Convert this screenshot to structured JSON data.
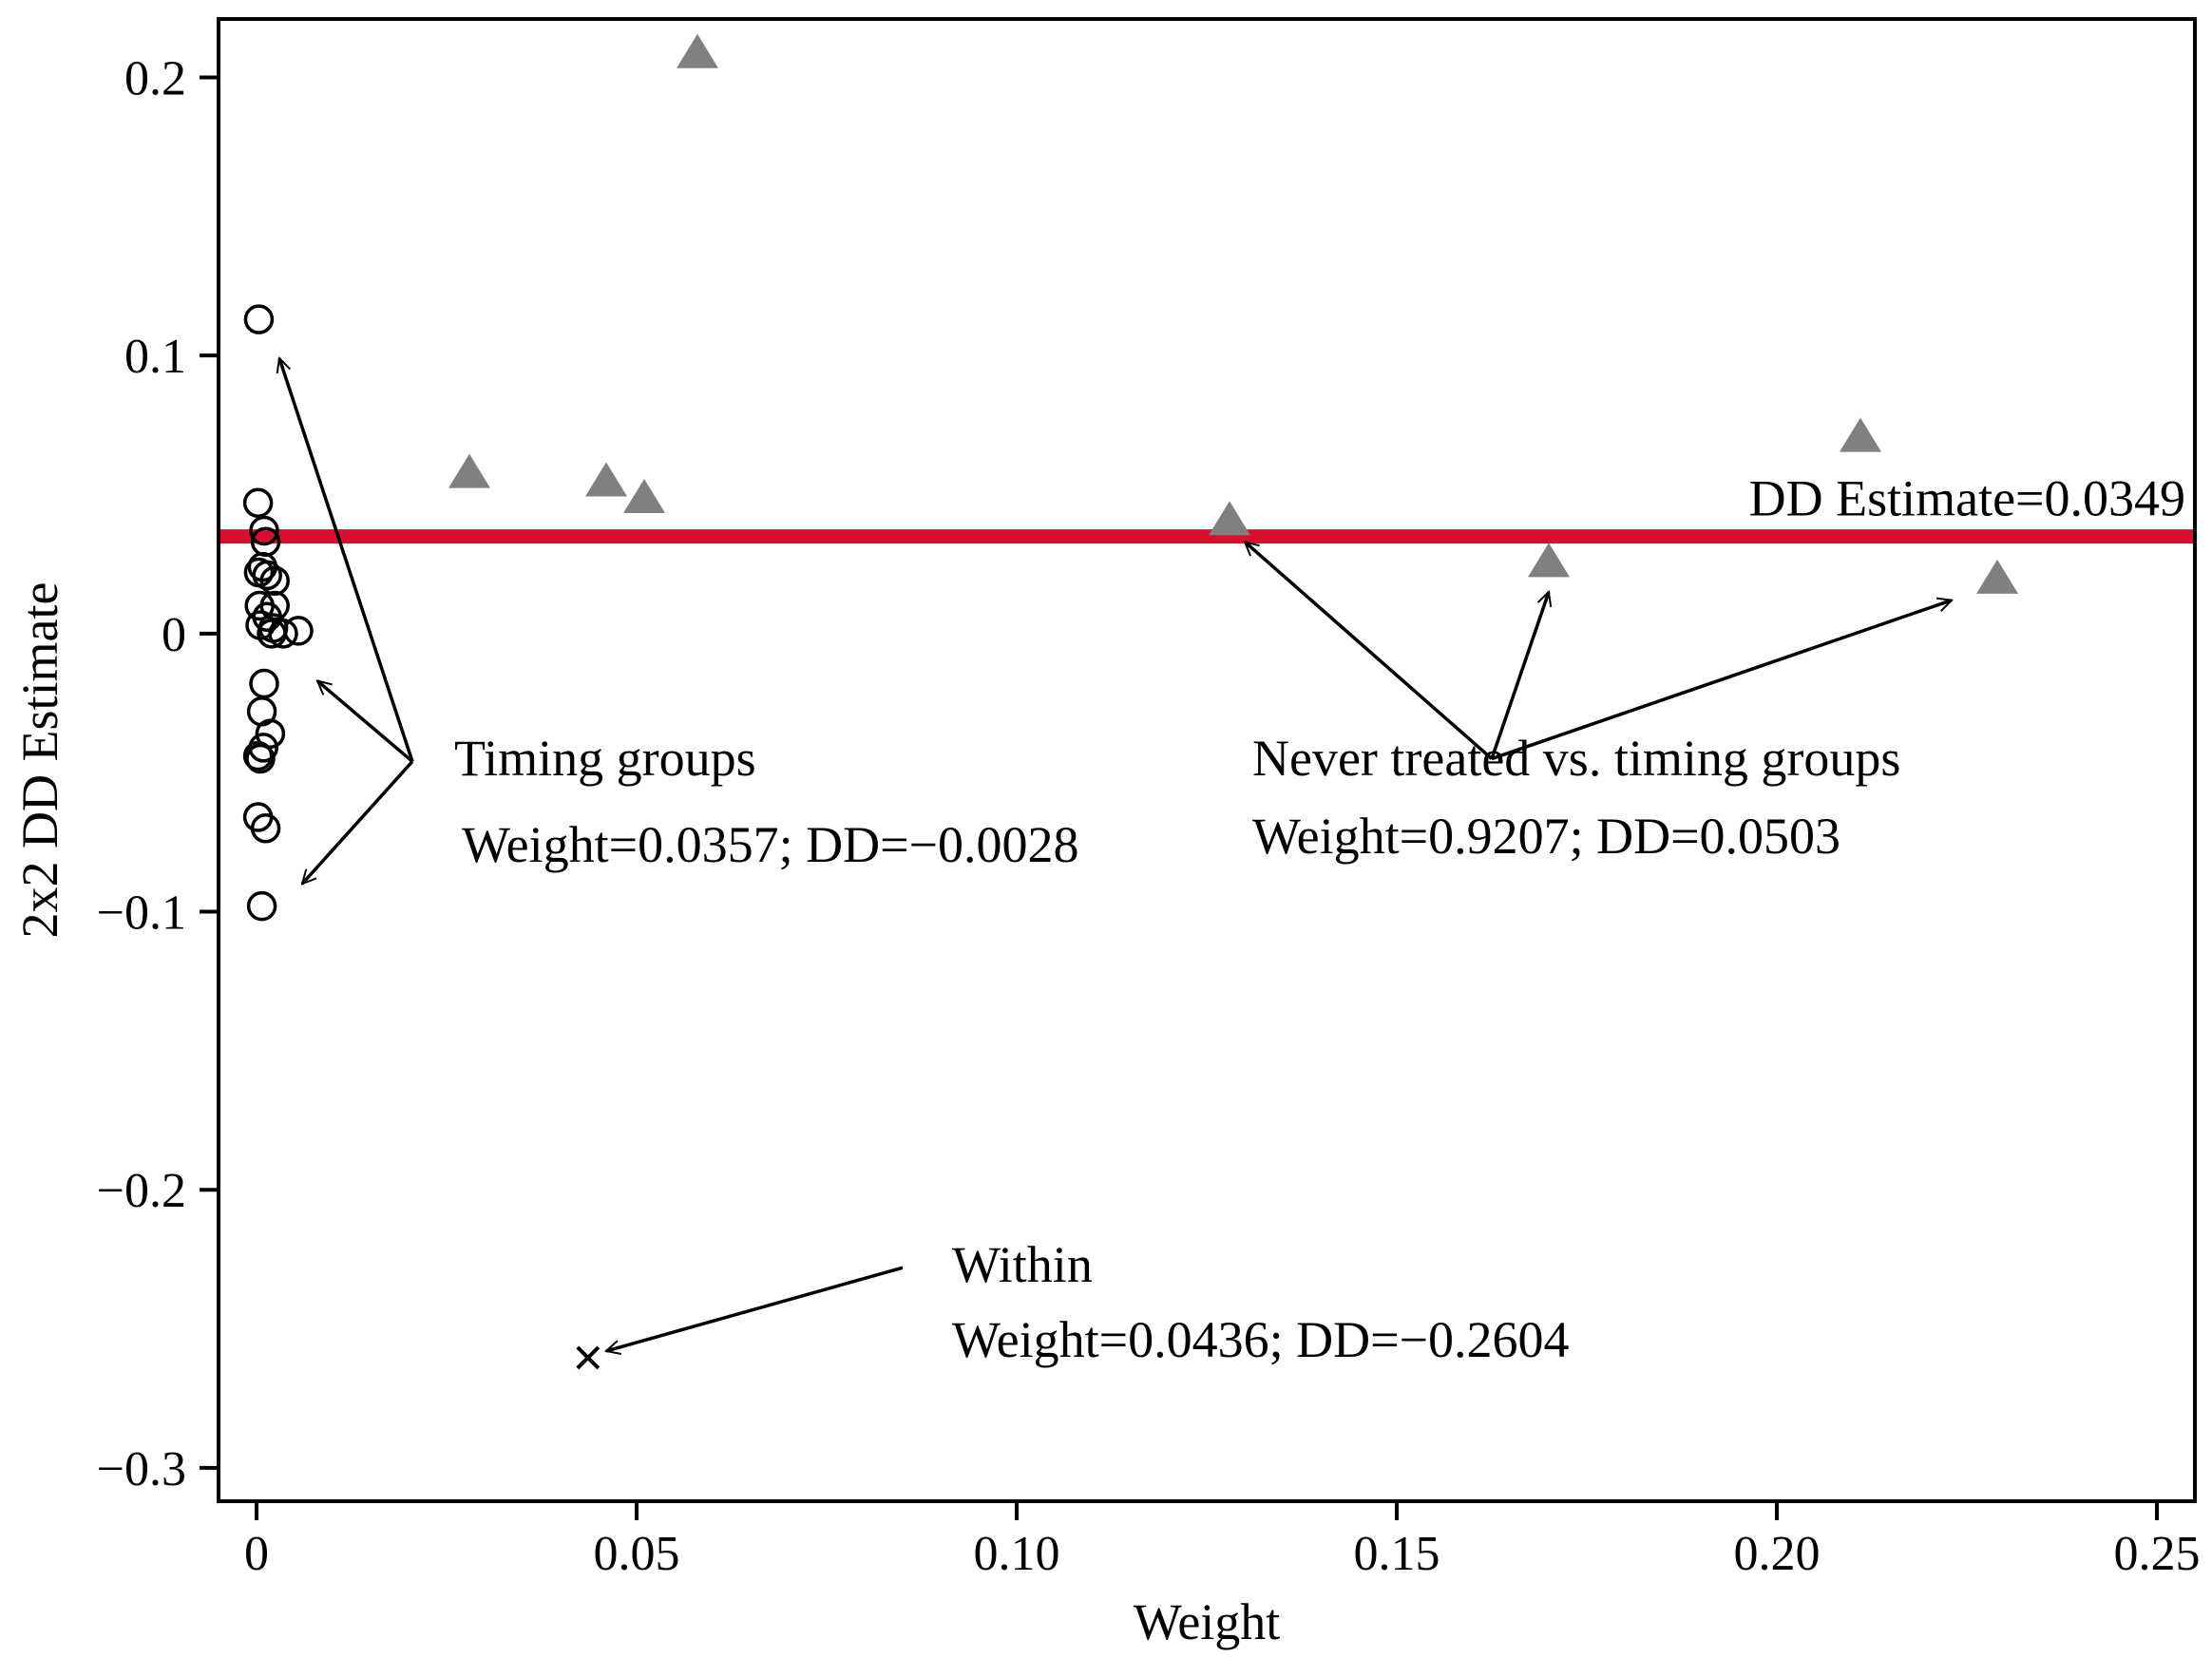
{
  "chart_data": {
    "type": "scatter",
    "xlabel": "Weight",
    "ylabel": "2x2 DD Estimate",
    "xlim": [
      -0.005,
      0.255
    ],
    "ylim": [
      -0.312,
      0.221
    ],
    "xticks": [
      {
        "value": 0,
        "label": "0"
      },
      {
        "value": 0.05,
        "label": "0.05"
      },
      {
        "value": 0.1,
        "label": "0.10"
      },
      {
        "value": 0.15,
        "label": "0.15"
      },
      {
        "value": 0.2,
        "label": "0.20"
      },
      {
        "value": 0.25,
        "label": "0.25"
      }
    ],
    "yticks": [
      {
        "value": 0.2,
        "label": "0.2"
      },
      {
        "value": 0.1,
        "label": "0.1"
      },
      {
        "value": 0,
        "label": "0"
      },
      {
        "value": -0.1,
        "label": "−0.1"
      },
      {
        "value": -0.2,
        "label": "−0.2"
      },
      {
        "value": -0.3,
        "label": "−0.3"
      }
    ],
    "reference_line": {
      "y": 0.0349,
      "label": "DD Estimate=0.0349",
      "color": "#d7102f"
    },
    "series": [
      {
        "name": "Timing groups",
        "marker": "circle",
        "color": "#000000",
        "points": [
          [
            0.0003,
            0.113
          ],
          [
            0.0002,
            0.047
          ],
          [
            0.001,
            0.037
          ],
          [
            0.0012,
            0.033
          ],
          [
            0.0008,
            0.024
          ],
          [
            0.0003,
            0.022
          ],
          [
            0.0014,
            0.021
          ],
          [
            0.0024,
            0.019
          ],
          [
            0.0004,
            0.01
          ],
          [
            0.0024,
            0.01
          ],
          [
            0.0014,
            0.006
          ],
          [
            0.0005,
            0.003
          ],
          [
            0.0022,
            0.002
          ],
          [
            0.002,
            0.0
          ],
          [
            0.0055,
            0.001
          ],
          [
            0.0035,
            0.0
          ],
          [
            0.001,
            -0.018
          ],
          [
            0.0007,
            -0.028
          ],
          [
            0.0018,
            -0.036
          ],
          [
            0.0009,
            -0.041
          ],
          [
            0.0002,
            -0.044
          ],
          [
            0.0005,
            -0.045
          ],
          [
            0.0002,
            -0.066
          ],
          [
            0.0012,
            -0.07
          ],
          [
            0.0007,
            -0.098
          ]
        ]
      },
      {
        "name": "Never treated vs. timing groups",
        "marker": "triangle",
        "color": "#808080",
        "points": [
          [
            0.028,
            0.057
          ],
          [
            0.046,
            0.054
          ],
          [
            0.051,
            0.048
          ],
          [
            0.058,
            0.208
          ],
          [
            0.128,
            0.04
          ],
          [
            0.17,
            0.025
          ],
          [
            0.211,
            0.07
          ],
          [
            0.229,
            0.019
          ]
        ]
      },
      {
        "name": "Within",
        "marker": "x",
        "color": "#000000",
        "points": [
          [
            0.0436,
            -0.2604
          ]
        ]
      }
    ],
    "annotations": [
      {
        "id": "timing",
        "title": "Timing groups",
        "detail": "Weight=0.0357; DD=−0.0028",
        "text_pos": [
          0.026,
          -0.051
        ],
        "detail_pos": [
          0.027,
          -0.082
        ],
        "arrow_origin": [
          0.0205,
          -0.046
        ],
        "arrow_targets": [
          [
            0.003,
            0.099
          ],
          [
            0.008,
            -0.017
          ],
          [
            0.006,
            -0.09
          ]
        ]
      },
      {
        "id": "never",
        "title": "Never treated vs. timing groups",
        "detail": "Weight=0.9207; DD=0.0503",
        "text_pos": [
          0.131,
          -0.051
        ],
        "detail_pos": [
          0.131,
          -0.079
        ],
        "arrow_origin": [
          0.1625,
          -0.045
        ],
        "arrow_targets": [
          [
            0.13,
            0.033
          ],
          [
            0.17,
            0.015
          ],
          [
            0.223,
            0.012
          ]
        ]
      },
      {
        "id": "within",
        "title": "Within",
        "detail": "Weight=0.0436; DD=−0.2604",
        "text_pos": [
          0.0915,
          -0.233
        ],
        "detail_pos": [
          0.0915,
          -0.26
        ],
        "arrow_origin": [
          0.085,
          -0.228
        ],
        "arrow_targets": [
          [
            0.046,
            -0.258
          ]
        ]
      }
    ]
  }
}
